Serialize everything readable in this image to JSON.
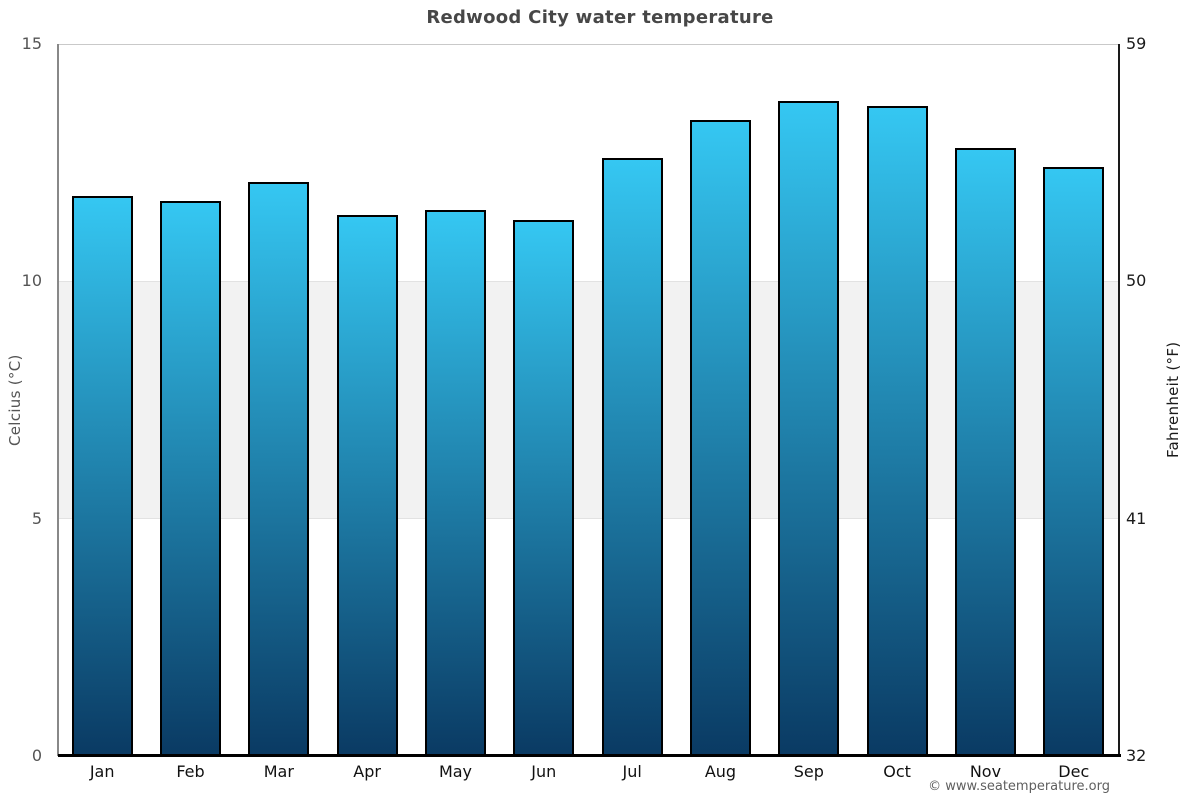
{
  "title": "Redwood City water temperature",
  "footer": "© www.seatemperature.org",
  "chart_data": {
    "type": "bar",
    "title": "Redwood City water temperature",
    "categories": [
      "Jan",
      "Feb",
      "Mar",
      "Apr",
      "May",
      "Jun",
      "Jul",
      "Aug",
      "Sep",
      "Oct",
      "Nov",
      "Dec"
    ],
    "values": [
      11.8,
      11.7,
      12.1,
      11.4,
      11.5,
      11.3,
      12.6,
      13.4,
      13.8,
      13.7,
      12.8,
      12.4
    ],
    "series_name": "Water temperature",
    "unit": "°C",
    "ylabel_left": "Celcius (°C)",
    "ylabel_right": "Fahrenheit (°F)",
    "yticks_left": [
      15,
      10,
      5,
      0
    ],
    "yticks_right": [
      59,
      50,
      41,
      32
    ],
    "ylim": [
      0,
      15
    ],
    "grid_band_celsius": [
      5,
      10
    ],
    "legend": "none",
    "grid": "horizontal-band",
    "colors": {
      "bar_top": "#35c7f2",
      "bar_bottom": "#0a3a63",
      "bar_border": "#000000",
      "band": "#f2f2f2",
      "band_edge": "#e2e2e2",
      "gridline": "#c9c9c9",
      "axis_left": "#888888",
      "axis_right": "#1a1a1a",
      "baseline": "#000000",
      "title": "#474747",
      "tick_left": "#555555",
      "tick_right": "#1a1a1a",
      "ylabel_left": "#555555",
      "ylabel_right": "#1a1a1a",
      "month": "#111111",
      "footer": "#5f5f5f"
    }
  }
}
